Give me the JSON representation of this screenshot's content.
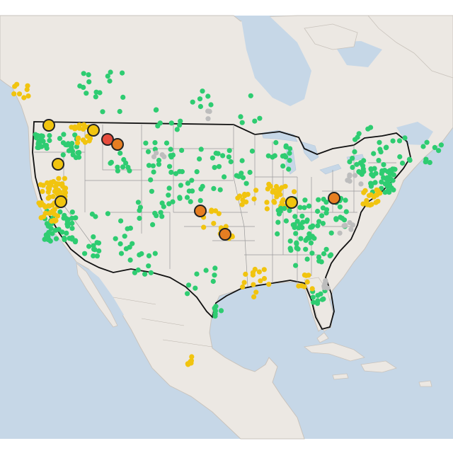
{
  "map": {
    "colors": {
      "water": "#c6d7e7",
      "land": "#ece8e3",
      "land_border": "#c9c3bc",
      "usa_outline": "#111111",
      "state_lines": "#9a9a9a",
      "good": "#2ecc71",
      "moderate": "#f1c40f",
      "unhealthy_sensitive": "#e67e22",
      "unhealthy": "#e74c3c",
      "no_data": "#bdbdbd",
      "marker_stroke": "#222222"
    }
  }
}
